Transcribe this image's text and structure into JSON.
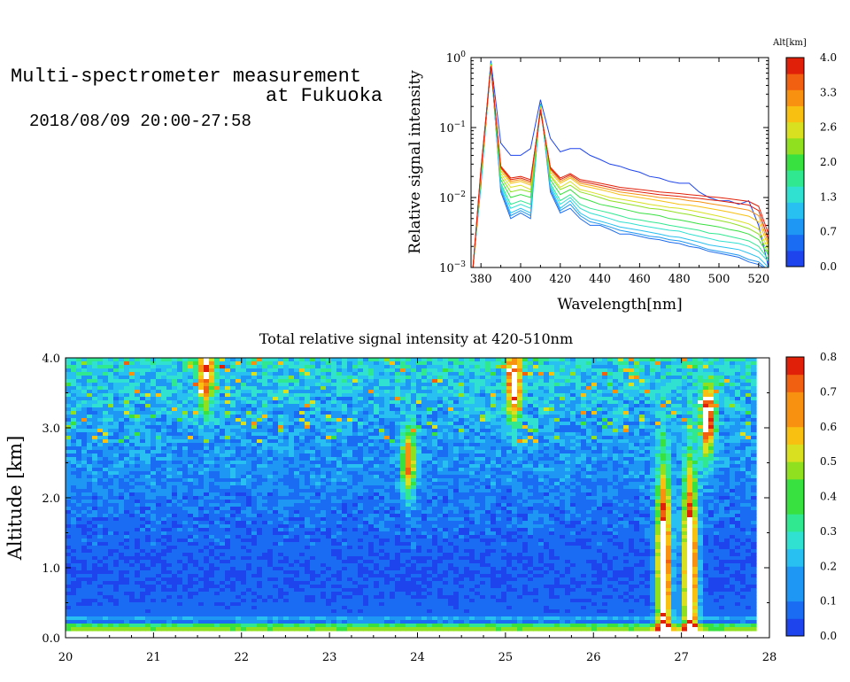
{
  "header": {
    "title_line1": "Multi-spectrometer measurement",
    "title_line2": "at Fukuoka",
    "date_range": "2018/08/09 20:00-27:58"
  },
  "colors": {
    "scale": [
      "#1e44ee",
      "#1a6cf2",
      "#1e96f4",
      "#28c0f0",
      "#30e0d0",
      "#30e890",
      "#38e040",
      "#90e020",
      "#d8e020",
      "#f8c010",
      "#f89010",
      "#f06010",
      "#e02008"
    ],
    "cloud": "#ffffff"
  },
  "chart_data": [
    {
      "type": "line",
      "xlabel": "Wavelength[nm]",
      "ylabel": "Relative signal intensity",
      "xlim": [
        375,
        525
      ],
      "ylim": [
        0.001,
        1
      ],
      "yscale": "log",
      "x_ticks": [
        380,
        400,
        420,
        440,
        460,
        480,
        500,
        520
      ],
      "y_ticks": [
        {
          "base": "10",
          "exp": "0",
          "value": 1
        },
        {
          "base": "10",
          "exp": "−1",
          "value": 0.1
        },
        {
          "base": "10",
          "exp": "−2",
          "value": 0.01
        },
        {
          "base": "10",
          "exp": "−3",
          "value": 0.001
        }
      ],
      "wavelengths": [
        376,
        380,
        385,
        390,
        395,
        400,
        405,
        410,
        415,
        420,
        425,
        430,
        435,
        440,
        445,
        450,
        455,
        460,
        465,
        470,
        475,
        480,
        485,
        490,
        495,
        500,
        505,
        510,
        515,
        520,
        525
      ],
      "series": [
        {
          "alt": 0.0,
          "values": [
            0.001,
            0.02,
            0.9,
            0.06,
            0.04,
            0.04,
            0.05,
            0.25,
            0.07,
            0.045,
            0.05,
            0.05,
            0.04,
            0.035,
            0.03,
            0.028,
            0.025,
            0.023,
            0.02,
            0.019,
            0.017,
            0.016,
            0.016,
            0.012,
            0.01,
            0.009,
            0.009,
            0.008,
            0.009,
            0.004,
            0.001
          ]
        },
        {
          "alt": 0.5,
          "values": [
            0.001,
            0.015,
            0.85,
            0.012,
            0.005,
            0.006,
            0.005,
            0.22,
            0.012,
            0.006,
            0.007,
            0.005,
            0.004,
            0.004,
            0.0035,
            0.003,
            0.003,
            0.0028,
            0.0026,
            0.0025,
            0.0023,
            0.0022,
            0.002,
            0.0019,
            0.0017,
            0.0016,
            0.0015,
            0.0014,
            0.0012,
            0.0011,
            0.0009
          ]
        },
        {
          "alt": 0.7,
          "values": [
            0.001,
            0.016,
            0.84,
            0.013,
            0.0055,
            0.0065,
            0.0055,
            0.22,
            0.013,
            0.0065,
            0.008,
            0.0055,
            0.0045,
            0.0042,
            0.0038,
            0.0034,
            0.0032,
            0.003,
            0.0028,
            0.0027,
            0.0025,
            0.0024,
            0.0022,
            0.002,
            0.0018,
            0.0017,
            0.0016,
            0.0015,
            0.0013,
            0.0012,
            0.0009
          ]
        },
        {
          "alt": 1.0,
          "values": [
            0.001,
            0.017,
            0.83,
            0.014,
            0.006,
            0.007,
            0.006,
            0.21,
            0.014,
            0.007,
            0.009,
            0.006,
            0.005,
            0.0046,
            0.0042,
            0.0038,
            0.0036,
            0.0034,
            0.0032,
            0.003,
            0.0028,
            0.0027,
            0.0025,
            0.0023,
            0.0021,
            0.002,
            0.0019,
            0.0018,
            0.0016,
            0.0014,
            0.001
          ]
        },
        {
          "alt": 1.3,
          "values": [
            0.001,
            0.018,
            0.82,
            0.015,
            0.007,
            0.008,
            0.007,
            0.21,
            0.015,
            0.008,
            0.01,
            0.007,
            0.006,
            0.0055,
            0.005,
            0.0045,
            0.0043,
            0.004,
            0.0038,
            0.0036,
            0.0034,
            0.0033,
            0.003,
            0.0028,
            0.0026,
            0.0024,
            0.0023,
            0.0022,
            0.002,
            0.0017,
            0.0012
          ]
        },
        {
          "alt": 1.6,
          "values": [
            0.001,
            0.019,
            0.81,
            0.016,
            0.008,
            0.009,
            0.008,
            0.2,
            0.016,
            0.009,
            0.011,
            0.008,
            0.007,
            0.0065,
            0.006,
            0.0055,
            0.005,
            0.0048,
            0.0045,
            0.0043,
            0.004,
            0.0038,
            0.0036,
            0.0034,
            0.0031,
            0.003,
            0.0028,
            0.0026,
            0.0024,
            0.002,
            0.0013
          ]
        },
        {
          "alt": 2.0,
          "values": [
            0.001,
            0.02,
            0.8,
            0.018,
            0.01,
            0.011,
            0.01,
            0.2,
            0.018,
            0.011,
            0.013,
            0.01,
            0.009,
            0.008,
            0.0075,
            0.007,
            0.0065,
            0.006,
            0.0058,
            0.0055,
            0.005,
            0.0048,
            0.0045,
            0.0042,
            0.004,
            0.0038,
            0.0035,
            0.0033,
            0.003,
            0.0025,
            0.0015
          ]
        },
        {
          "alt": 2.3,
          "values": [
            0.001,
            0.021,
            0.79,
            0.02,
            0.012,
            0.013,
            0.012,
            0.2,
            0.02,
            0.013,
            0.015,
            0.012,
            0.011,
            0.01,
            0.009,
            0.0085,
            0.008,
            0.0075,
            0.007,
            0.0068,
            0.0064,
            0.006,
            0.0057,
            0.0053,
            0.005,
            0.0047,
            0.0044,
            0.004,
            0.0036,
            0.003,
            0.0016
          ]
        },
        {
          "alt": 2.6,
          "values": [
            0.001,
            0.022,
            0.78,
            0.022,
            0.014,
            0.015,
            0.013,
            0.19,
            0.021,
            0.014,
            0.017,
            0.013,
            0.012,
            0.011,
            0.01,
            0.0095,
            0.009,
            0.0085,
            0.008,
            0.0076,
            0.0072,
            0.007,
            0.0066,
            0.0062,
            0.0058,
            0.0054,
            0.005,
            0.0046,
            0.0042,
            0.0035,
            0.0018
          ]
        },
        {
          "alt": 3.0,
          "values": [
            0.001,
            0.023,
            0.77,
            0.024,
            0.016,
            0.017,
            0.015,
            0.19,
            0.023,
            0.016,
            0.019,
            0.015,
            0.014,
            0.013,
            0.012,
            0.011,
            0.0105,
            0.01,
            0.0095,
            0.009,
            0.0085,
            0.008,
            0.0078,
            0.0074,
            0.007,
            0.0066,
            0.0062,
            0.0058,
            0.0054,
            0.0045,
            0.002
          ]
        },
        {
          "alt": 3.3,
          "values": [
            0.001,
            0.024,
            0.76,
            0.026,
            0.017,
            0.018,
            0.016,
            0.18,
            0.025,
            0.017,
            0.02,
            0.016,
            0.015,
            0.014,
            0.013,
            0.012,
            0.0115,
            0.011,
            0.0105,
            0.01,
            0.0098,
            0.0095,
            0.009,
            0.0087,
            0.0082,
            0.0078,
            0.0074,
            0.007,
            0.0066,
            0.0055,
            0.0022
          ]
        },
        {
          "alt": 3.7,
          "values": [
            0.001,
            0.025,
            0.75,
            0.027,
            0.018,
            0.019,
            0.017,
            0.18,
            0.026,
            0.018,
            0.021,
            0.017,
            0.016,
            0.015,
            0.014,
            0.013,
            0.0125,
            0.012,
            0.0115,
            0.011,
            0.0107,
            0.0104,
            0.01,
            0.0097,
            0.0093,
            0.009,
            0.0086,
            0.0082,
            0.0078,
            0.0065,
            0.0025
          ]
        },
        {
          "alt": 4.0,
          "values": [
            0.001,
            0.026,
            0.74,
            0.028,
            0.019,
            0.02,
            0.018,
            0.17,
            0.027,
            0.019,
            0.022,
            0.018,
            0.017,
            0.016,
            0.015,
            0.014,
            0.0135,
            0.013,
            0.0125,
            0.012,
            0.0117,
            0.0114,
            0.011,
            0.0107,
            0.0103,
            0.01,
            0.0096,
            0.0092,
            0.0088,
            0.0075,
            0.003
          ]
        }
      ],
      "colorbar": {
        "title": "Alt[km]",
        "range": [
          0,
          4
        ],
        "tick_labels": [
          "0.0",
          "0.7",
          "1.3",
          "2.0",
          "2.6",
          "3.3",
          "4.0"
        ],
        "tick_values": [
          0.0,
          0.667,
          1.333,
          2.0,
          2.667,
          3.333,
          4.0
        ]
      }
    },
    {
      "type": "heatmap",
      "title": "Total relative signal intensity at 420-510nm",
      "xlabel": "",
      "ylabel": "Altitude [km]",
      "xlim": [
        20,
        28
      ],
      "ylim": [
        0,
        4
      ],
      "x_ticks": [
        "20",
        "21",
        "22",
        "23",
        "24",
        "25",
        "26",
        "27",
        "28"
      ],
      "x_tick_values": [
        20,
        21,
        22,
        23,
        24,
        25,
        26,
        27,
        28
      ],
      "y_ticks": [
        "0.0",
        "1.0",
        "2.0",
        "3.0",
        "4.0"
      ],
      "y_tick_values": [
        0,
        1,
        2,
        3,
        4
      ],
      "data_xlim": [
        20.0,
        27.8
      ],
      "data_ylim": [
        0.15,
        4.0
      ],
      "color_range": [
        0,
        0.8
      ],
      "features": {
        "background_profile": [
          [
            0.15,
            0.45
          ],
          [
            0.18,
            0.36
          ],
          [
            0.22,
            0.1
          ],
          [
            0.28,
            0.18
          ],
          [
            0.32,
            0.09
          ],
          [
            0.8,
            0.06
          ],
          [
            1.8,
            0.1
          ],
          [
            2.4,
            0.14
          ],
          [
            3.0,
            0.17
          ],
          [
            3.4,
            0.2
          ],
          [
            3.8,
            0.24
          ],
          [
            4.0,
            0.28
          ]
        ],
        "plumes": [
          {
            "x": 23.9,
            "y": 2.5,
            "value": 0.55
          },
          {
            "x": 25.1,
            "y": 3.6,
            "value": 0.7
          },
          {
            "x": 21.6,
            "y": 3.8,
            "value": 0.6
          },
          {
            "x": 26.8,
            "y": 1.0,
            "value": 0.9
          },
          {
            "x": 27.1,
            "y": 1.0,
            "value": 0.9
          },
          {
            "x": 27.3,
            "y": 3.1,
            "value": 0.7
          }
        ]
      },
      "colorbar": {
        "range": [
          0,
          0.8
        ],
        "tick_labels": [
          "0.0",
          "0.1",
          "0.2",
          "0.3",
          "0.4",
          "0.5",
          "0.6",
          "0.7",
          "0.8"
        ],
        "tick_values": [
          0,
          0.1,
          0.2,
          0.3,
          0.4,
          0.5,
          0.6,
          0.7,
          0.8
        ]
      }
    }
  ]
}
